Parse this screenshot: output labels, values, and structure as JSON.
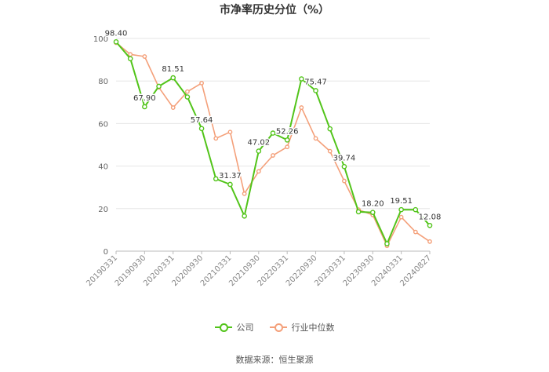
{
  "chart_data": {
    "type": "line",
    "title": "市净率历史分位（%）",
    "source": "数据来源：恒生聚源",
    "x": [
      "20190331",
      "20190630",
      "20190930",
      "20191231",
      "20200331",
      "20200630",
      "20200930",
      "20201231",
      "20210331",
      "20210630",
      "20210930",
      "20211231",
      "20220331",
      "20220630",
      "20220930",
      "20221231",
      "20230331",
      "20230630",
      "20230930",
      "20231231",
      "20240331",
      "20240630",
      "20240827"
    ],
    "x_tick_labels": [
      "20190331",
      "20190930",
      "20200331",
      "20200930",
      "20210331",
      "20210930",
      "20220331",
      "20220930",
      "20230331",
      "20230930",
      "20240331",
      "20240827"
    ],
    "ylim": [
      0,
      100
    ],
    "y_ticks": [
      "0",
      "20",
      "40",
      "60",
      "80",
      "100"
    ],
    "grid": true,
    "legend_position": "bottom",
    "series": [
      {
        "name": "公司",
        "color": "#52c41a",
        "values": [
          98.4,
          90.5,
          67.9,
          77.5,
          81.51,
          72.5,
          57.64,
          34.0,
          31.37,
          16.5,
          47.02,
          55.5,
          52.26,
          81.0,
          75.47,
          57.5,
          39.74,
          18.5,
          18.2,
          3.5,
          19.51,
          19.5,
          12.08
        ],
        "labels": [
          "98.40",
          null,
          "67.90",
          null,
          "81.51",
          null,
          "57.64",
          null,
          "31.37",
          null,
          "47.02",
          null,
          "52.26",
          null,
          "75.47",
          null,
          "39.74",
          null,
          "18.20",
          null,
          "19.51",
          null,
          "12.08"
        ]
      },
      {
        "name": "行业中位数",
        "color": "#f4a07a",
        "values": [
          98.0,
          92.5,
          91.5,
          77.0,
          67.5,
          75.0,
          79.0,
          53.0,
          56.0,
          27.0,
          37.5,
          45.0,
          49.0,
          67.5,
          53.0,
          47.0,
          33.0,
          19.5,
          17.0,
          2.5,
          16.0,
          9.0,
          4.5
        ]
      }
    ]
  }
}
